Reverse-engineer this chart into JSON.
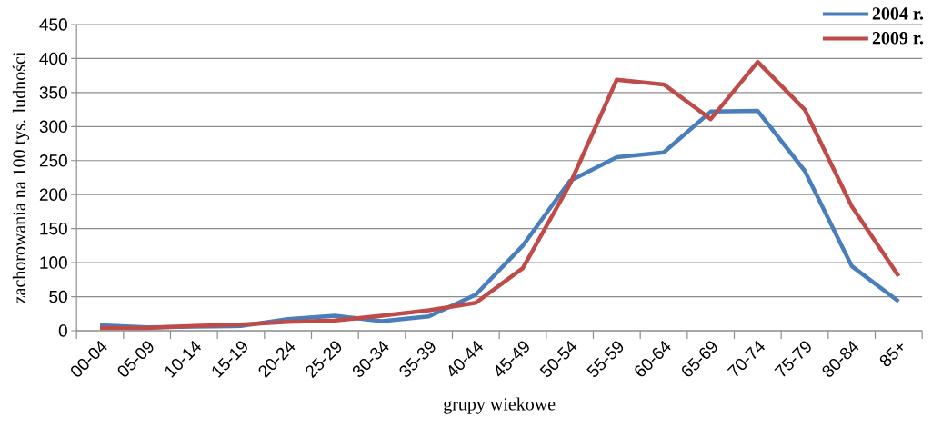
{
  "chart_data": {
    "type": "line",
    "xlabel": "grupy wiekowe",
    "ylabel": "zachorowania na 100 tys. ludności",
    "categories": [
      "00-04",
      "05-09",
      "10-14",
      "15-19",
      "20-24",
      "25-29",
      "30-34",
      "35-39",
      "40-44",
      "45-49",
      "50-54",
      "55-59",
      "60-64",
      "65-69",
      "70-74",
      "75-79",
      "80-84",
      "85+"
    ],
    "series": [
      {
        "name": "2004 r.",
        "color": "#4a7ebb",
        "values": [
          8,
          5,
          6,
          7,
          17,
          22,
          14,
          21,
          53,
          125,
          220,
          255,
          262,
          322,
          323,
          235,
          95,
          43
        ]
      },
      {
        "name": "2009 r.",
        "color": "#be4b48",
        "values": [
          4,
          4,
          7,
          9,
          13,
          15,
          22,
          30,
          41,
          92,
          215,
          369,
          362,
          311,
          395,
          325,
          183,
          80
        ]
      }
    ],
    "ylim": [
      0,
      450
    ],
    "yticks": [
      0,
      50,
      100,
      150,
      200,
      250,
      300,
      350,
      400,
      450
    ],
    "grid": "y",
    "legend": "top right",
    "marker": "none",
    "line_style": "solid"
  }
}
